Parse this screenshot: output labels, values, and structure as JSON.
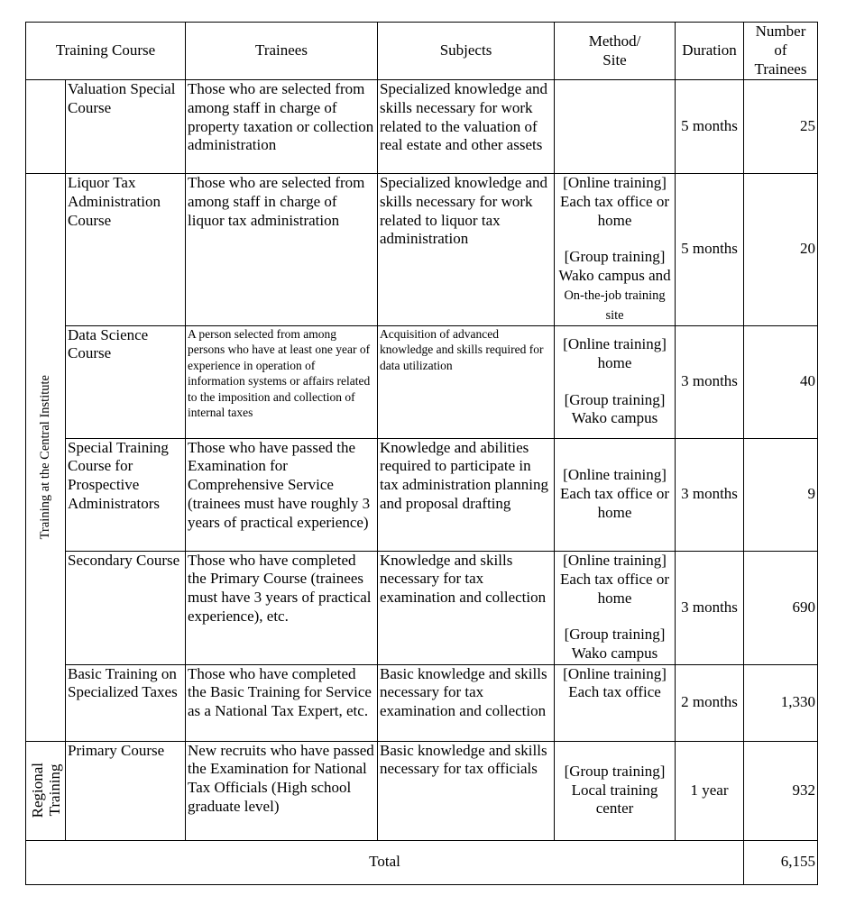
{
  "headers": {
    "course": "Training Course",
    "trainees": "Trainees",
    "subjects": "Subjects",
    "method_1": "Method/",
    "method_2": "Site",
    "duration": "Duration",
    "number_1": "Number",
    "number_2": "of",
    "number_3": "Trainees"
  },
  "groups": {
    "central": "Training at the Central Institute",
    "regional_1": "Regional",
    "regional_2": "Training"
  },
  "rows": [
    {
      "course": "Valuation Special Course",
      "trainees": "Those who are selected from among staff in charge of property taxation or collection administration",
      "subjects": "Specialized knowledge and skills necessary for work related to the valuation of real estate and other assets",
      "method_a": "",
      "method_b": "",
      "duration": "5 months",
      "number": "25"
    },
    {
      "course": "Liquor Tax Administration Course",
      "trainees": "Those who are selected from among staff in charge of liquor tax administration",
      "subjects": "Specialized knowledge and skills necessary for work related to liquor tax administration",
      "method_a": "[Online training] Each tax office or home",
      "method_b": "[Group training] Wako campus and",
      "method_b_small": "On-the-job training site",
      "duration": "5 months",
      "number": "20"
    },
    {
      "course": "Data Science Course",
      "trainees": "A person selected from among persons who have at least one year of experience in operation of information systems or affairs related to the imposition and collection of internal taxes",
      "subjects": "Acquisition of advanced knowledge and skills required for data utilization",
      "method_a": "[Online training] home",
      "method_b": "[Group training] Wako campus",
      "duration": "3 months",
      "number": "40"
    },
    {
      "course": "Special Training Course for Prospective Administrators",
      "trainees": "Those who have passed the Examination for Comprehensive Service (trainees must have roughly 3 years of practical experience)",
      "subjects": "Knowledge and abilities required to participate in tax administration planning and proposal drafting",
      "method_a": "[Online training] Each tax office or home",
      "method_b": "",
      "duration": "3 months",
      "number": "9"
    },
    {
      "course": "Secondary Course",
      "trainees": "Those who have completed the Primary Course (trainees must have 3 years of practical experience), etc.",
      "subjects": "Knowledge and skills necessary for tax examination and collection",
      "method_a": "[Online training] Each tax office or home",
      "method_b": "[Group training] Wako campus",
      "duration": "3 months",
      "number": "690"
    },
    {
      "course": "Basic Training on Specialized Taxes",
      "trainees": "Those who have completed the Basic Training for Service as a National Tax Expert, etc.",
      "subjects": "Basic knowledge and skills necessary for tax examination and collection",
      "method_a": "[Online training] Each tax office",
      "method_b": "",
      "duration": "2 months",
      "number": "1,330"
    },
    {
      "course": "Primary Course",
      "trainees": "New recruits who have passed the Examination for National Tax Officials (High school graduate level)",
      "subjects": "Basic knowledge and skills necessary for tax officials",
      "method_a": "[Group training] Local training center",
      "method_b": "",
      "duration": "1 year",
      "number": "932"
    }
  ],
  "total": {
    "label": "Total",
    "number": "6,155"
  }
}
